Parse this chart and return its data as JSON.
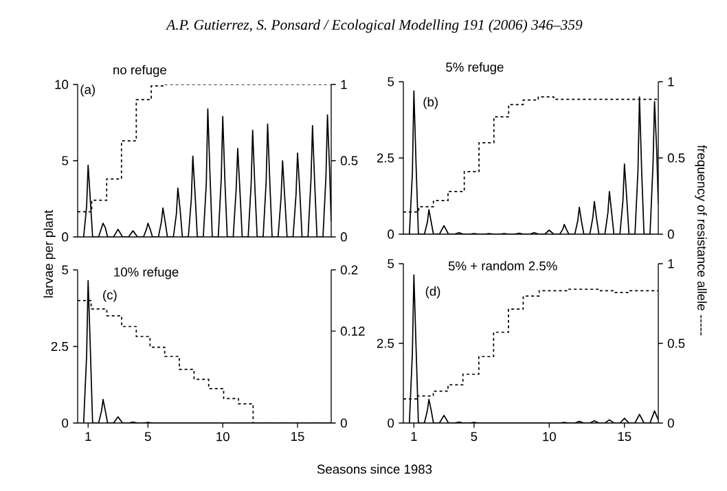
{
  "chart_data": [
    {
      "type": "line",
      "title": "no refuge",
      "annotations": [
        "A.P. Gutierrez, S. Ponsard / Ecological Modelling 191 (2006) 346–359",
        "(a)"
      ],
      "xlim": [
        0.3,
        17.25
      ],
      "ylim": [
        0,
        10
      ],
      "yticks": [
        0,
        5,
        10
      ],
      "y2lim": [
        0,
        1
      ],
      "y2ticks": [
        0,
        0.5,
        1
      ],
      "tick_labels": "y",
      "series": [
        {
          "color": "#000000",
          "x": [
            0.7,
            0.9,
            1.0,
            1.15,
            1.3,
            1.7,
            1.9,
            2.0,
            2.15,
            2.3,
            2.7,
            3.0,
            3.3,
            3.7,
            4.0,
            4.3,
            4.7,
            4.9,
            5.0,
            5.15,
            5.3,
            5.7,
            5.9,
            6.0,
            6.15,
            6.3,
            6.7,
            6.9,
            7.0,
            7.15,
            7.3,
            7.7,
            7.9,
            8.0,
            8.15,
            8.3,
            8.7,
            8.9,
            9.0,
            9.15,
            9.3,
            9.7,
            9.9,
            10.0,
            10.15,
            10.3,
            10.7,
            10.9,
            11.0,
            11.15,
            11.3,
            11.7,
            11.9,
            12.0,
            12.15,
            12.3,
            12.7,
            12.9,
            13.0,
            13.15,
            13.3,
            13.7,
            13.9,
            14.0,
            14.15,
            14.3,
            14.7,
            14.9,
            15.0,
            15.15,
            15.3,
            15.7,
            15.9,
            16.0,
            16.15,
            16.3,
            16.7,
            16.9,
            17.0,
            17.15,
            17.25
          ],
          "values": [
            0,
            2.0,
            4.7,
            2.4,
            0,
            0,
            0.6,
            0.9,
            0.6,
            0,
            0,
            0.5,
            0,
            0,
            0.4,
            0,
            0,
            0.5,
            0.9,
            0.5,
            0,
            0,
            1.0,
            1.9,
            1.0,
            0,
            0,
            1.5,
            3.2,
            1.8,
            0,
            0,
            2.5,
            5.3,
            2.8,
            0,
            0,
            3.5,
            8.4,
            4.0,
            0,
            0,
            3.8,
            7.9,
            3.5,
            0,
            0,
            3.2,
            5.8,
            3.0,
            0,
            0,
            3.5,
            7.0,
            3.2,
            0,
            0,
            3.6,
            7.4,
            3.5,
            0,
            0,
            2.6,
            5.0,
            2.5,
            0,
            0,
            2.8,
            5.5,
            3.0,
            0,
            0,
            3.8,
            7.3,
            3.4,
            0,
            0,
            4.0,
            8.0,
            4.2,
            1.0
          ]
        },
        {
          "type": "step",
          "axis": "y2",
          "line_style": "dashed",
          "color": "#000000",
          "x": [
            0.3,
            1.24,
            2.24,
            3.23,
            4.22,
            5.22,
            6.14,
            17.25
          ],
          "values": [
            0.165,
            0.24,
            0.38,
            0.63,
            0.9,
            0.99,
            1.0,
            1.0
          ]
        }
      ]
    },
    {
      "type": "line",
      "title": "5% refuge",
      "y2label": "frequency of resistance allele -----",
      "annotations": [
        "(b)"
      ],
      "xlim": [
        0.3,
        17.25
      ],
      "ylim": [
        0,
        5
      ],
      "yticks": [
        0,
        2.5,
        5
      ],
      "y2lim": [
        0,
        1
      ],
      "y2ticks": [
        0,
        0.5,
        1
      ],
      "tick_labels": "y",
      "series": [
        {
          "color": "#000000",
          "x": [
            0.7,
            0.9,
            1.0,
            1.15,
            1.3,
            1.7,
            1.9,
            2.0,
            2.15,
            2.3,
            2.7,
            3.0,
            3.3,
            3.7,
            4.0,
            4.3,
            4.7,
            5.0,
            5.3,
            5.7,
            6.0,
            6.3,
            6.7,
            7.0,
            7.3,
            7.7,
            8.0,
            8.3,
            8.7,
            9.0,
            9.3,
            9.7,
            10.0,
            10.3,
            10.7,
            10.9,
            11.0,
            11.15,
            11.3,
            11.7,
            11.9,
            12.0,
            12.15,
            12.3,
            12.7,
            12.9,
            13.0,
            13.15,
            13.3,
            13.7,
            13.9,
            14.0,
            14.15,
            14.3,
            14.7,
            14.9,
            15.0,
            15.15,
            15.3,
            15.7,
            15.9,
            16.0,
            16.15,
            16.3,
            16.7,
            16.9,
            17.0,
            17.15,
            17.25
          ],
          "values": [
            0,
            2.0,
            4.7,
            2.2,
            0,
            0,
            0.4,
            0.8,
            0.4,
            0,
            0,
            0.28,
            0,
            0,
            0.05,
            0,
            0,
            0.02,
            0,
            0,
            0.02,
            0,
            0,
            0.02,
            0,
            0,
            0.03,
            0,
            0,
            0.05,
            0,
            0,
            0.13,
            0,
            0,
            0.16,
            0.32,
            0.15,
            0,
            0,
            0.45,
            0.88,
            0.4,
            0,
            0,
            0.55,
            1.07,
            0.5,
            0,
            0,
            0.7,
            1.4,
            0.7,
            0,
            0,
            1.1,
            2.3,
            1.2,
            0,
            0,
            2.1,
            4.5,
            2.0,
            0,
            0,
            2.3,
            4.35,
            2.7,
            1.0
          ]
        },
        {
          "type": "step",
          "axis": "y2",
          "line_style": "dashed",
          "color": "#000000",
          "x": [
            0.3,
            1.32,
            2.3,
            3.27,
            4.35,
            5.33,
            6.32,
            7.3,
            8.27,
            9.27,
            10.3,
            17.25
          ],
          "values": [
            0.146,
            0.18,
            0.22,
            0.28,
            0.41,
            0.6,
            0.77,
            0.85,
            0.88,
            0.9,
            0.885,
            0.885
          ]
        }
      ]
    },
    {
      "type": "line",
      "title": "10% refuge",
      "xlabel": "Seasons since 1983",
      "ylabel": "larvae per plant",
      "annotations": [
        "(c)"
      ],
      "xlim": [
        0.3,
        17.25
      ],
      "xticks": [
        1,
        5,
        10,
        15
      ],
      "ylim": [
        0,
        5
      ],
      "yticks": [
        0,
        2.5,
        5
      ],
      "y2lim": [
        0,
        0.2
      ],
      "y2ticks": [
        0,
        0.12,
        0.2
      ],
      "series": [
        {
          "color": "#000000",
          "x": [
            0.7,
            0.9,
            1.0,
            1.15,
            1.3,
            1.7,
            1.9,
            2.0,
            2.15,
            2.3,
            2.7,
            3.0,
            3.3,
            3.7,
            4.0,
            4.3,
            4.7,
            5.0,
            5.3,
            17.25
          ],
          "values": [
            0,
            2.2,
            4.65,
            2.4,
            0,
            0,
            0.4,
            0.77,
            0.4,
            0,
            0,
            0.2,
            0,
            0,
            0.03,
            0,
            0,
            0.02,
            0,
            0
          ]
        },
        {
          "type": "step",
          "axis": "y2",
          "line_style": "dashed",
          "color": "#000000",
          "x": [
            0.3,
            1.2,
            2.25,
            3.24,
            4.22,
            5.14,
            6.12,
            7.1,
            8.08,
            9.06,
            10.06,
            11.05,
            12.03,
            17.25
          ],
          "values": [
            0.16,
            0.149,
            0.14,
            0.126,
            0.113,
            0.099,
            0.087,
            0.07,
            0.057,
            0.045,
            0.032,
            0.025,
            0,
            0
          ]
        }
      ]
    },
    {
      "type": "line",
      "title": "5% + random 2.5%",
      "annotations": [
        "(d)"
      ],
      "xlim": [
        0.3,
        17.25
      ],
      "xticks": [
        1,
        5,
        10,
        15
      ],
      "ylim": [
        0,
        5
      ],
      "yticks": [
        0,
        2.5,
        5
      ],
      "y2lim": [
        0,
        1
      ],
      "y2ticks": [
        0,
        0.5,
        1
      ],
      "series": [
        {
          "color": "#000000",
          "x": [
            0.7,
            0.9,
            1.0,
            1.15,
            1.3,
            1.7,
            1.9,
            2.0,
            2.15,
            2.3,
            2.7,
            3.0,
            3.3,
            3.7,
            4.0,
            4.3,
            4.7,
            5.0,
            5.3,
            10.7,
            11.0,
            11.3,
            11.7,
            12.0,
            12.3,
            12.7,
            13.0,
            13.3,
            13.7,
            14.0,
            14.3,
            14.7,
            15.0,
            15.3,
            15.7,
            16.0,
            16.3,
            16.7,
            17.0,
            17.25
          ],
          "values": [
            0,
            2.2,
            4.65,
            2.3,
            0,
            0,
            0.4,
            0.74,
            0.4,
            0,
            0,
            0.24,
            0,
            0,
            0.03,
            0,
            0,
            0.02,
            0,
            0,
            0.02,
            0,
            0,
            0.05,
            0,
            0,
            0.07,
            0,
            0,
            0.1,
            0,
            0,
            0.15,
            0,
            0,
            0.27,
            0,
            0,
            0.38,
            0.1
          ]
        },
        {
          "type": "step",
          "axis": "y2",
          "line_style": "dashed",
          "color": "#000000",
          "x": [
            0.3,
            1.23,
            2.29,
            3.27,
            4.26,
            5.32,
            6.3,
            7.29,
            8.27,
            9.33,
            11.3,
            13.4,
            14.3,
            15.24,
            17.25
          ],
          "values": [
            0.151,
            0.17,
            0.2,
            0.24,
            0.306,
            0.417,
            0.57,
            0.715,
            0.797,
            0.83,
            0.84,
            0.83,
            0.82,
            0.83,
            0.83
          ]
        }
      ]
    }
  ]
}
